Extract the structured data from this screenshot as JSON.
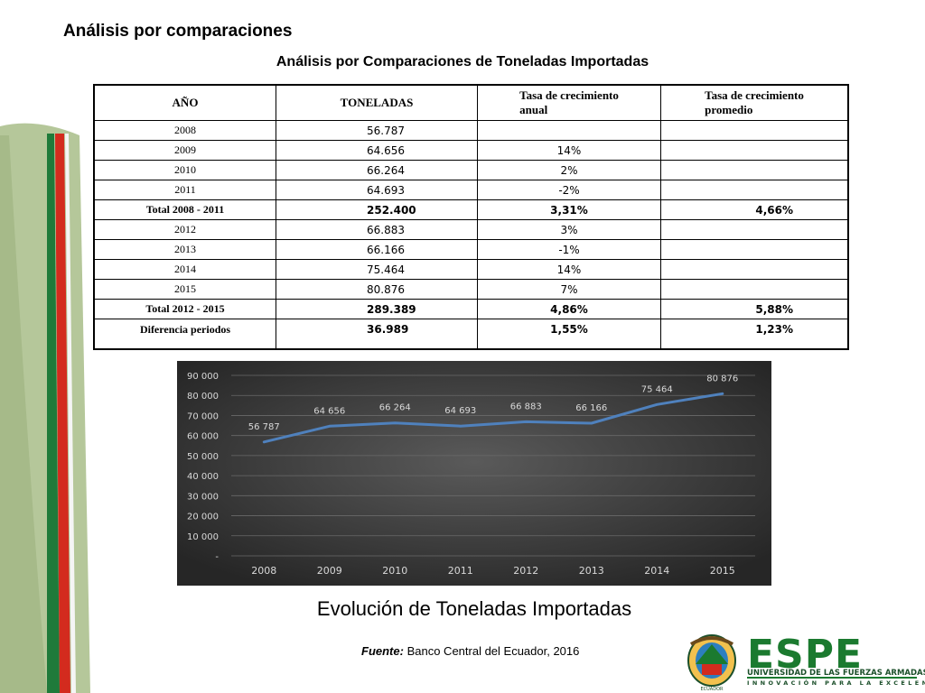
{
  "slide": {
    "heading": "Análisis por comparaciones",
    "table_title": "Análisis por Comparaciones de Toneladas Importadas",
    "chart_caption": "Evolución de Toneladas Importadas",
    "source_label": "Fuente:",
    "source_text": "Banco Central del Ecuador, 2016"
  },
  "table": {
    "headers": {
      "year": "AÑO",
      "tons": "TONELADAS",
      "annual_rate": "Tasa de crecimiento\nanual",
      "avg_rate": "Tasa de crecimiento\npromedio"
    },
    "rows": [
      {
        "year": "2008",
        "tons": "56.787",
        "rate": "",
        "avg": ""
      },
      {
        "year": "2009",
        "tons": "64.656",
        "rate": "14%",
        "avg": ""
      },
      {
        "year": "2010",
        "tons": "66.264",
        "rate": "2%",
        "avg": ""
      },
      {
        "year": "2011",
        "tons": "64.693",
        "rate": "-2%",
        "avg": ""
      },
      {
        "year": "Total 2008 - 2011",
        "tons": "252.400",
        "rate": "3,31%",
        "avg": "4,66%"
      },
      {
        "year": "2012",
        "tons": "66.883",
        "rate": "3%",
        "avg": ""
      },
      {
        "year": "2013",
        "tons": "66.166",
        "rate": "-1%",
        "avg": ""
      },
      {
        "year": "2014",
        "tons": "75.464",
        "rate": "14%",
        "avg": ""
      },
      {
        "year": "2015",
        "tons": "80.876",
        "rate": "7%",
        "avg": ""
      },
      {
        "year": "Total 2012 - 2015",
        "tons": "289.389",
        "rate": "4,86%",
        "avg": "5,88%"
      },
      {
        "year": "Diferencia periodos",
        "tons": "36.989",
        "rate": "1,55%",
        "avg": "1,23%"
      }
    ]
  },
  "chart_data": {
    "type": "line",
    "categories": [
      "2008",
      "2009",
      "2010",
      "2011",
      "2012",
      "2013",
      "2014",
      "2015"
    ],
    "series": [
      {
        "values": [
          56787,
          64656,
          66264,
          64693,
          66883,
          66166,
          75464,
          80876
        ],
        "labels": [
          "56 787",
          "64 656",
          "66 264",
          "64 693",
          "66 883",
          "66 166",
          "75 464",
          "80 876"
        ],
        "color": "#4f81bd"
      }
    ],
    "ylim": [
      0,
      90000
    ],
    "yticks": [
      0,
      10000,
      20000,
      30000,
      40000,
      50000,
      60000,
      70000,
      80000,
      90000
    ],
    "ytick_labels": [
      "-",
      "10 000",
      "20 000",
      "30 000",
      "40 000",
      "50 000",
      "60 000",
      "70 000",
      "80 000",
      "90 000"
    ],
    "grid": true,
    "background": "dark-radial"
  },
  "branding": {
    "logo_text": "ESPE",
    "logo_line1": "UNIVERSIDAD DE LAS FUERZAS ARMADAS",
    "logo_line2": "INNOVACIÓN PARA LA EXCELENCIA",
    "seal_label": "ECUADOR",
    "green": "#1b7a2f",
    "red": "#d32b1e"
  }
}
